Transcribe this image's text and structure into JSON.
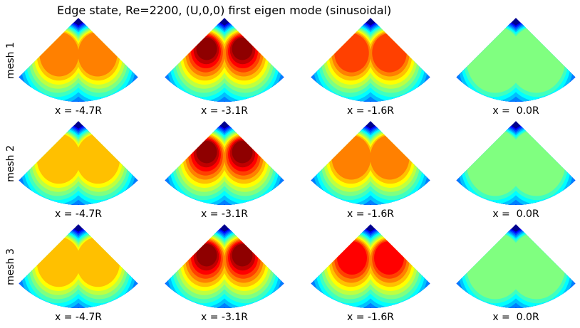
{
  "title": "Edge state, Re=2200, (U,0,0) first eigen mode (sinusoidal)",
  "rows": [
    {
      "label": "mesh 1",
      "panels": [
        "x = -4.7R",
        "x = -3.1R",
        "x = -1.6R",
        "x =  0.0R"
      ]
    },
    {
      "label": "mesh 2",
      "panels": [
        "x = -4.7R",
        "x = -3.1R",
        "x = -1.6R",
        "x =  0.0R"
      ]
    },
    {
      "label": "mesh 3",
      "panels": [
        "x = -4.7R",
        "x = -3.1R",
        "x = -1.6R",
        "x =  0.0R"
      ]
    }
  ]
}
